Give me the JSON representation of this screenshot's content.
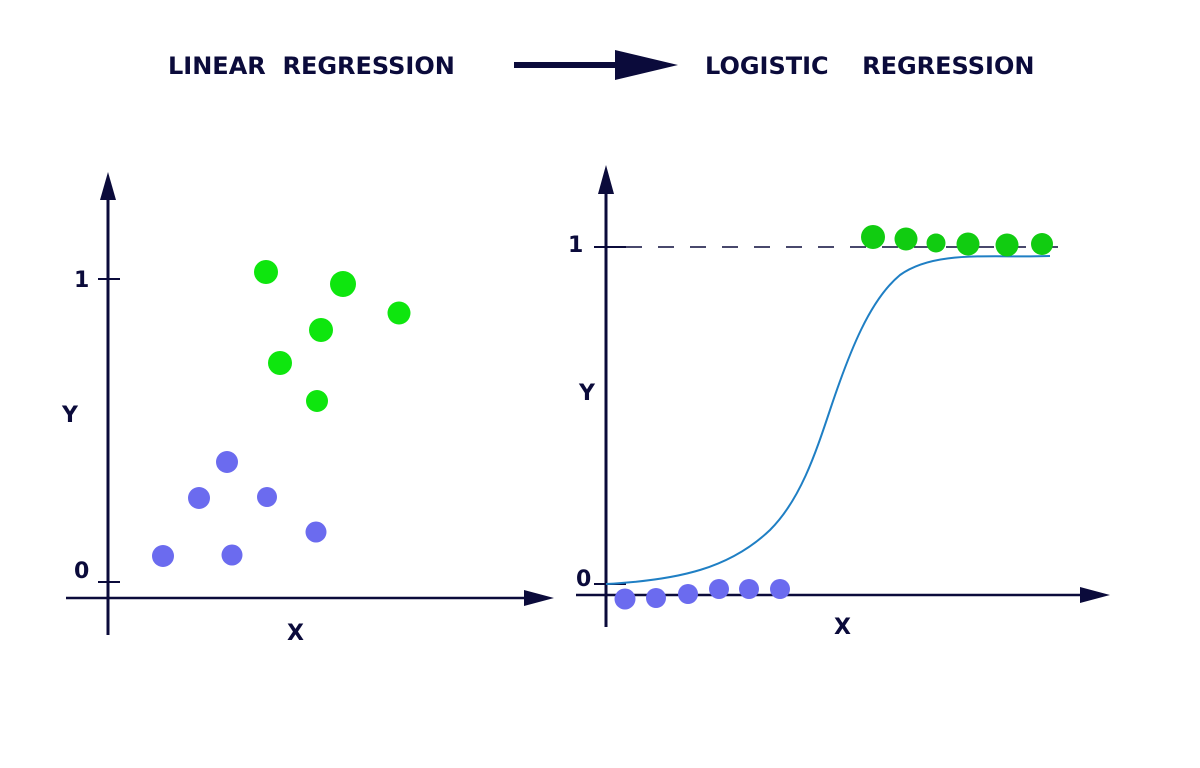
{
  "header": {
    "left_title": "LINEAR  REGRESSION",
    "right_title": "LOGISTIC    REGRESSION"
  },
  "colors": {
    "axis": "#0b0b3b",
    "green": "#0ee60e",
    "green_dark": "#11cc11",
    "blue": "#6b6bef",
    "curve": "#1f7fc4"
  },
  "linear_panel": {
    "y_label": "Y",
    "x_label": "X",
    "tick_one": "1",
    "tick_zero": "0"
  },
  "logistic_panel": {
    "y_label": "Y",
    "x_label": "X",
    "tick_one": "1",
    "tick_zero": "0"
  }
}
